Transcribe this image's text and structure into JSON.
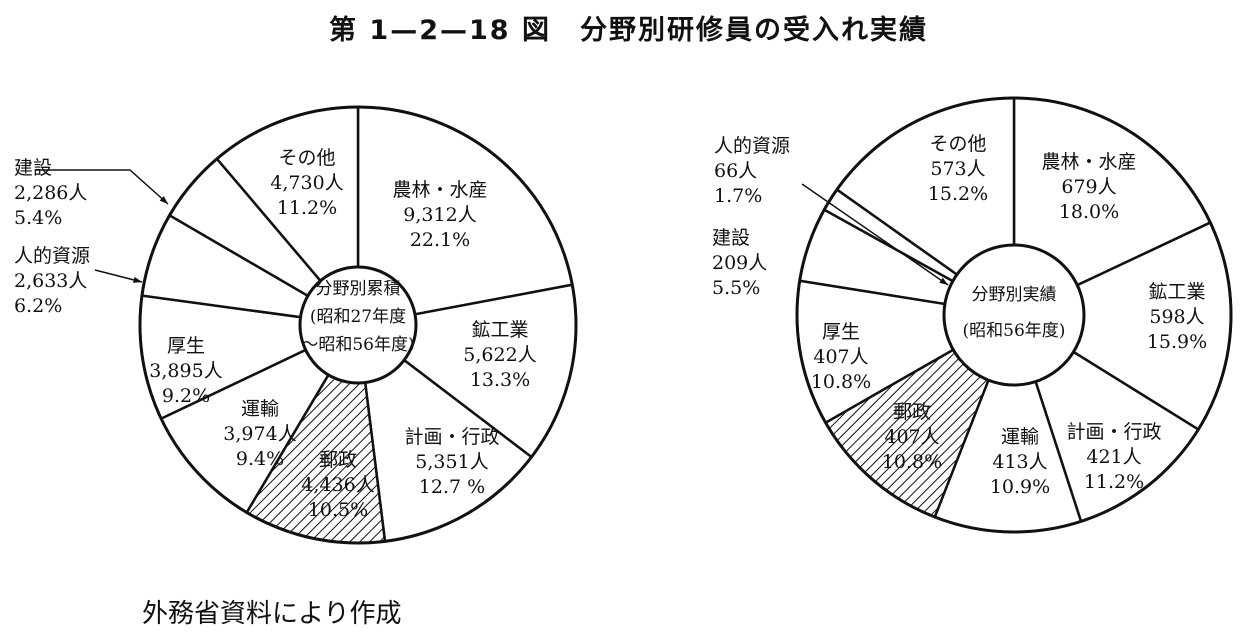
{
  "title": "第 1—2—18 図　分野別研修員の受入れ実績",
  "source": "外務省資料により作成",
  "chart_data": [
    {
      "type": "pie",
      "center_label": [
        "分野別累積",
        "(昭和27年度",
        "～昭和56年度)"
      ],
      "start": "12 o'clock",
      "direction": "clockwise",
      "hatched_slice": "郵政",
      "slices": [
        {
          "name": "農林・水産",
          "count": "9,312人",
          "percent": "22.1%",
          "value": 9312
        },
        {
          "name": "鉱工業",
          "count": "5,622人",
          "percent": "13.3%",
          "value": 5622
        },
        {
          "name": "計画・行政",
          "count": "5,351人",
          "percent": "12.7 %",
          "value": 5351
        },
        {
          "name": "郵政",
          "count": "4,436人",
          "percent": "10.5%",
          "value": 4436
        },
        {
          "name": "運輸",
          "count": "3,974人",
          "percent": "9.4%",
          "value": 3974
        },
        {
          "name": "厚生",
          "count": "3,895人",
          "percent": "9.2%",
          "value": 3895
        },
        {
          "name": "人的資源",
          "count": "2,633人",
          "percent": "6.2%",
          "value": 2633
        },
        {
          "name": "建設",
          "count": "2,286人",
          "percent": "5.4%",
          "value": 2286
        },
        {
          "name": "その他",
          "count": "4,730人",
          "percent": "11.2%",
          "value": 4730
        }
      ]
    },
    {
      "type": "pie",
      "center_label": [
        "分野別実績",
        "(昭和56年度)"
      ],
      "start": "12 o'clock",
      "direction": "clockwise",
      "hatched_slice": "郵政",
      "slices": [
        {
          "name": "農林・水産",
          "count": "679人",
          "percent": "18.0%",
          "value": 679
        },
        {
          "name": "鉱工業",
          "count": "598人",
          "percent": "15.9%",
          "value": 598
        },
        {
          "name": "計画・行政",
          "count": "421人",
          "percent": "11.2%",
          "value": 421
        },
        {
          "name": "運輸",
          "count": "413人",
          "percent": "10.9%",
          "value": 413
        },
        {
          "name": "郵政",
          "count": "407人",
          "percent": "10.8%",
          "value": 407
        },
        {
          "name": "厚生",
          "count": "407人",
          "percent": "10.8%",
          "value": 407
        },
        {
          "name": "建設",
          "count": "209人",
          "percent": "5.5%",
          "value": 209
        },
        {
          "name": "人的資源",
          "count": "66人",
          "percent": "1.7%",
          "value": 66
        },
        {
          "name": "その他",
          "count": "573人",
          "percent": "15.2%",
          "value": 573
        }
      ]
    }
  ]
}
